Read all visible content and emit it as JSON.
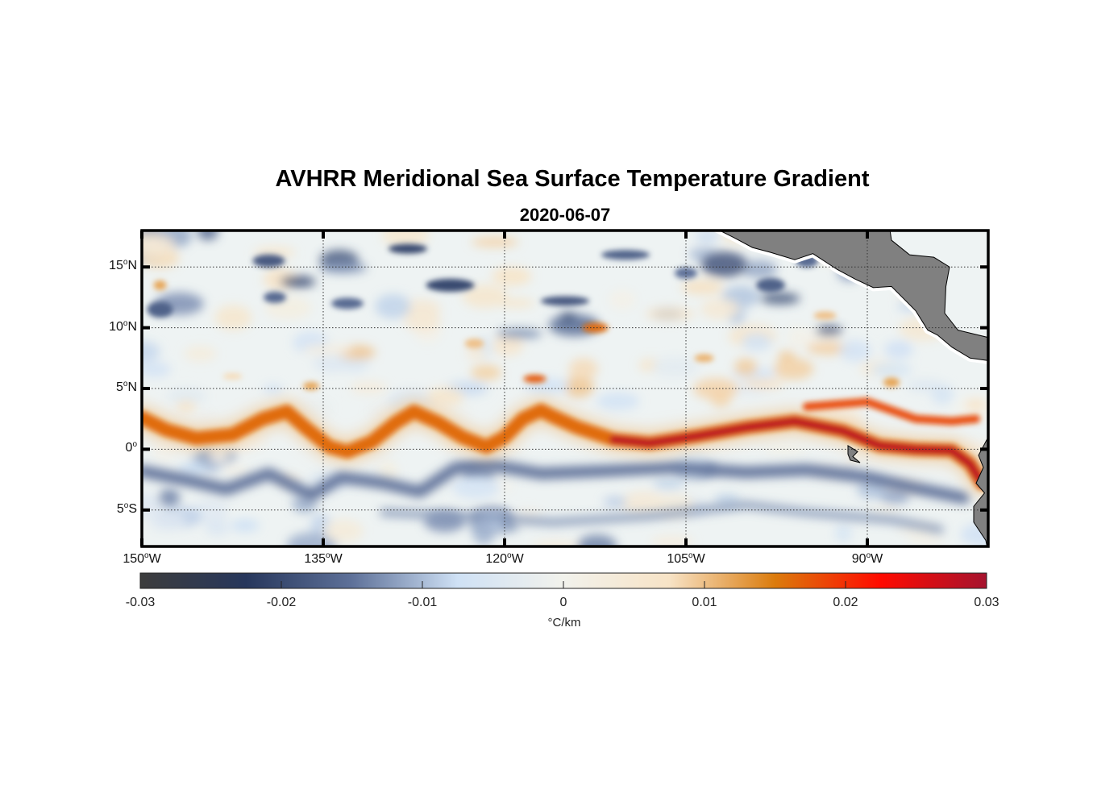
{
  "chart_data": {
    "type": "heatmap",
    "title": "AVHRR Meridional Sea Surface Temperature Gradient",
    "subtitle": "2020-06-07",
    "variable": "Meridional SST gradient",
    "units": "°C/km",
    "lon_range": [
      -150,
      -80
    ],
    "lat_range": [
      -8,
      18
    ],
    "lat_ticks": [
      {
        "value": 15,
        "deg": "15",
        "hem": "N"
      },
      {
        "value": 10,
        "deg": "10",
        "hem": "N"
      },
      {
        "value": 5,
        "deg": "5",
        "hem": "N"
      },
      {
        "value": 0,
        "deg": "0",
        "hem": ""
      },
      {
        "value": -5,
        "deg": "5",
        "hem": "S"
      }
    ],
    "lon_ticks": [
      {
        "value": -150,
        "deg": "150",
        "hem": "W"
      },
      {
        "value": -135,
        "deg": "135",
        "hem": "W"
      },
      {
        "value": -120,
        "deg": "120",
        "hem": "W"
      },
      {
        "value": -105,
        "deg": "105",
        "hem": "W"
      },
      {
        "value": -90,
        "deg": "90",
        "hem": "W"
      }
    ],
    "grid": true,
    "colorbar": {
      "orientation": "horizontal",
      "location": "bottom",
      "range": [
        -0.03,
        0.03
      ],
      "ticks": [
        "-0.03",
        "-0.02",
        "-0.01",
        "0",
        "0.01",
        "0.02",
        "0.03"
      ],
      "label": "°C/km",
      "colors": [
        "#3d3d3d",
        "#27375c",
        "#5e7199",
        "#cfe1f5",
        "#f2f2ec",
        "#f7e3c6",
        "#db7b0c",
        "#ff0a00",
        "#a5132e"
      ]
    },
    "features": {
      "equatorial_front": "strong positive gradient band (~0.02–0.03) along 0°–3°N from 150°W to the coast, with tropical instability wave cusps",
      "southern_band": "negative gradient band (~-0.015) near 1°S–4°S",
      "land_color": "#808080"
    }
  }
}
